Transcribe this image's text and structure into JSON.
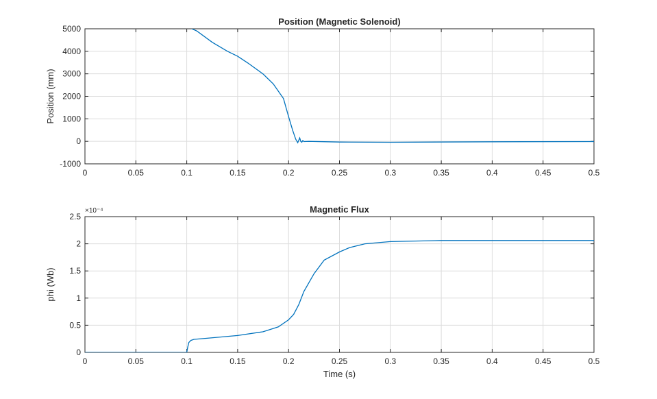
{
  "chart_data": [
    {
      "type": "line",
      "title": "Position (Magnetic Solenoid)",
      "xlabel": "",
      "ylabel": "Position (mm)",
      "xlim": [
        0,
        0.5
      ],
      "ylim": [
        -1000,
        5000
      ],
      "grid": true,
      "xticks": [
        "0",
        "0.05",
        "0.1",
        "0.15",
        "0.2",
        "0.25",
        "0.3",
        "0.35",
        "0.4",
        "0.45",
        "0.5"
      ],
      "yticks": [
        "-1000",
        "0",
        "1000",
        "2000",
        "3000",
        "4000",
        "5000"
      ],
      "color": "#0072BD",
      "x": [
        0.1,
        0.105,
        0.11,
        0.125,
        0.14,
        0.15,
        0.16,
        0.175,
        0.185,
        0.195,
        0.2,
        0.204,
        0.207,
        0.209,
        0.21,
        0.211,
        0.212,
        0.213,
        0.214,
        0.215,
        0.22,
        0.25,
        0.3,
        0.4,
        0.5
      ],
      "y": [
        5300,
        5000,
        4900,
        4400,
        4000,
        3780,
        3480,
        2990,
        2550,
        1900,
        1100,
        500,
        100,
        -60,
        50,
        150,
        0,
        -40,
        40,
        -10,
        0,
        -30,
        -40,
        -20,
        -10
      ]
    },
    {
      "type": "line",
      "title": "Magnetic Flux",
      "xlabel": "Time (s)",
      "ylabel": "phi (Wb)",
      "y_exponent": "×10⁻⁴",
      "xlim": [
        0,
        0.5
      ],
      "ylim": [
        0,
        0.00025
      ],
      "grid": true,
      "xticks": [
        "0",
        "0.05",
        "0.1",
        "0.15",
        "0.2",
        "0.25",
        "0.3",
        "0.35",
        "0.4",
        "0.45",
        "0.5"
      ],
      "yticks": [
        "0",
        "0.5",
        "1",
        "1.5",
        "2",
        "2.5"
      ],
      "color": "#0072BD",
      "x": [
        0,
        0.1,
        0.101,
        0.102,
        0.104,
        0.107,
        0.12,
        0.15,
        0.175,
        0.19,
        0.2,
        0.205,
        0.21,
        0.215,
        0.225,
        0.235,
        0.25,
        0.26,
        0.275,
        0.3,
        0.35,
        0.4,
        0.5
      ],
      "y": [
        0,
        0,
        1e-05,
        1.8e-05,
        2.2e-05,
        2.4e-05,
        2.6e-05,
        3.1e-05,
        3.8e-05,
        4.7e-05,
        6e-05,
        7e-05,
        8.8e-05,
        0.000112,
        0.000145,
        0.00017,
        0.000185,
        0.000193,
        0.0002,
        0.000204,
        0.000206,
        0.000206,
        0.000206
      ]
    }
  ]
}
